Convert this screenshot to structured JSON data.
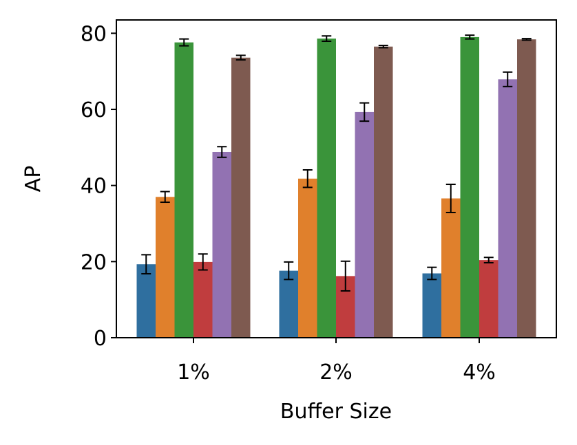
{
  "chart_data": {
    "type": "bar",
    "xlabel": "Buffer Size",
    "ylabel": "AP",
    "categories": [
      "1%",
      "2%",
      "4%"
    ],
    "ylim": [
      0,
      83.5
    ],
    "yticks": [
      0,
      20,
      40,
      60,
      80
    ],
    "grid": false,
    "legend": "none",
    "series": [
      {
        "color": "#2f6f9f",
        "values": [
          19.3,
          17.6,
          16.9
        ],
        "err": [
          2.5,
          2.3,
          1.6
        ]
      },
      {
        "color": "#e0802c",
        "values": [
          37.0,
          41.8,
          36.6
        ],
        "err": [
          1.4,
          2.3,
          3.7
        ]
      },
      {
        "color": "#3a943a",
        "values": [
          77.6,
          78.6,
          79.0
        ],
        "err": [
          0.9,
          0.7,
          0.5
        ]
      },
      {
        "color": "#c03d3e",
        "values": [
          19.9,
          16.2,
          20.4
        ],
        "err": [
          2.1,
          3.9,
          0.7
        ]
      },
      {
        "color": "#9272b2",
        "values": [
          48.8,
          59.3,
          67.9
        ],
        "err": [
          1.4,
          2.4,
          1.9
        ]
      },
      {
        "color": "#7e5a50",
        "values": [
          73.6,
          76.5,
          78.4
        ],
        "err": [
          0.6,
          0.3,
          0.2
        ]
      }
    ]
  }
}
